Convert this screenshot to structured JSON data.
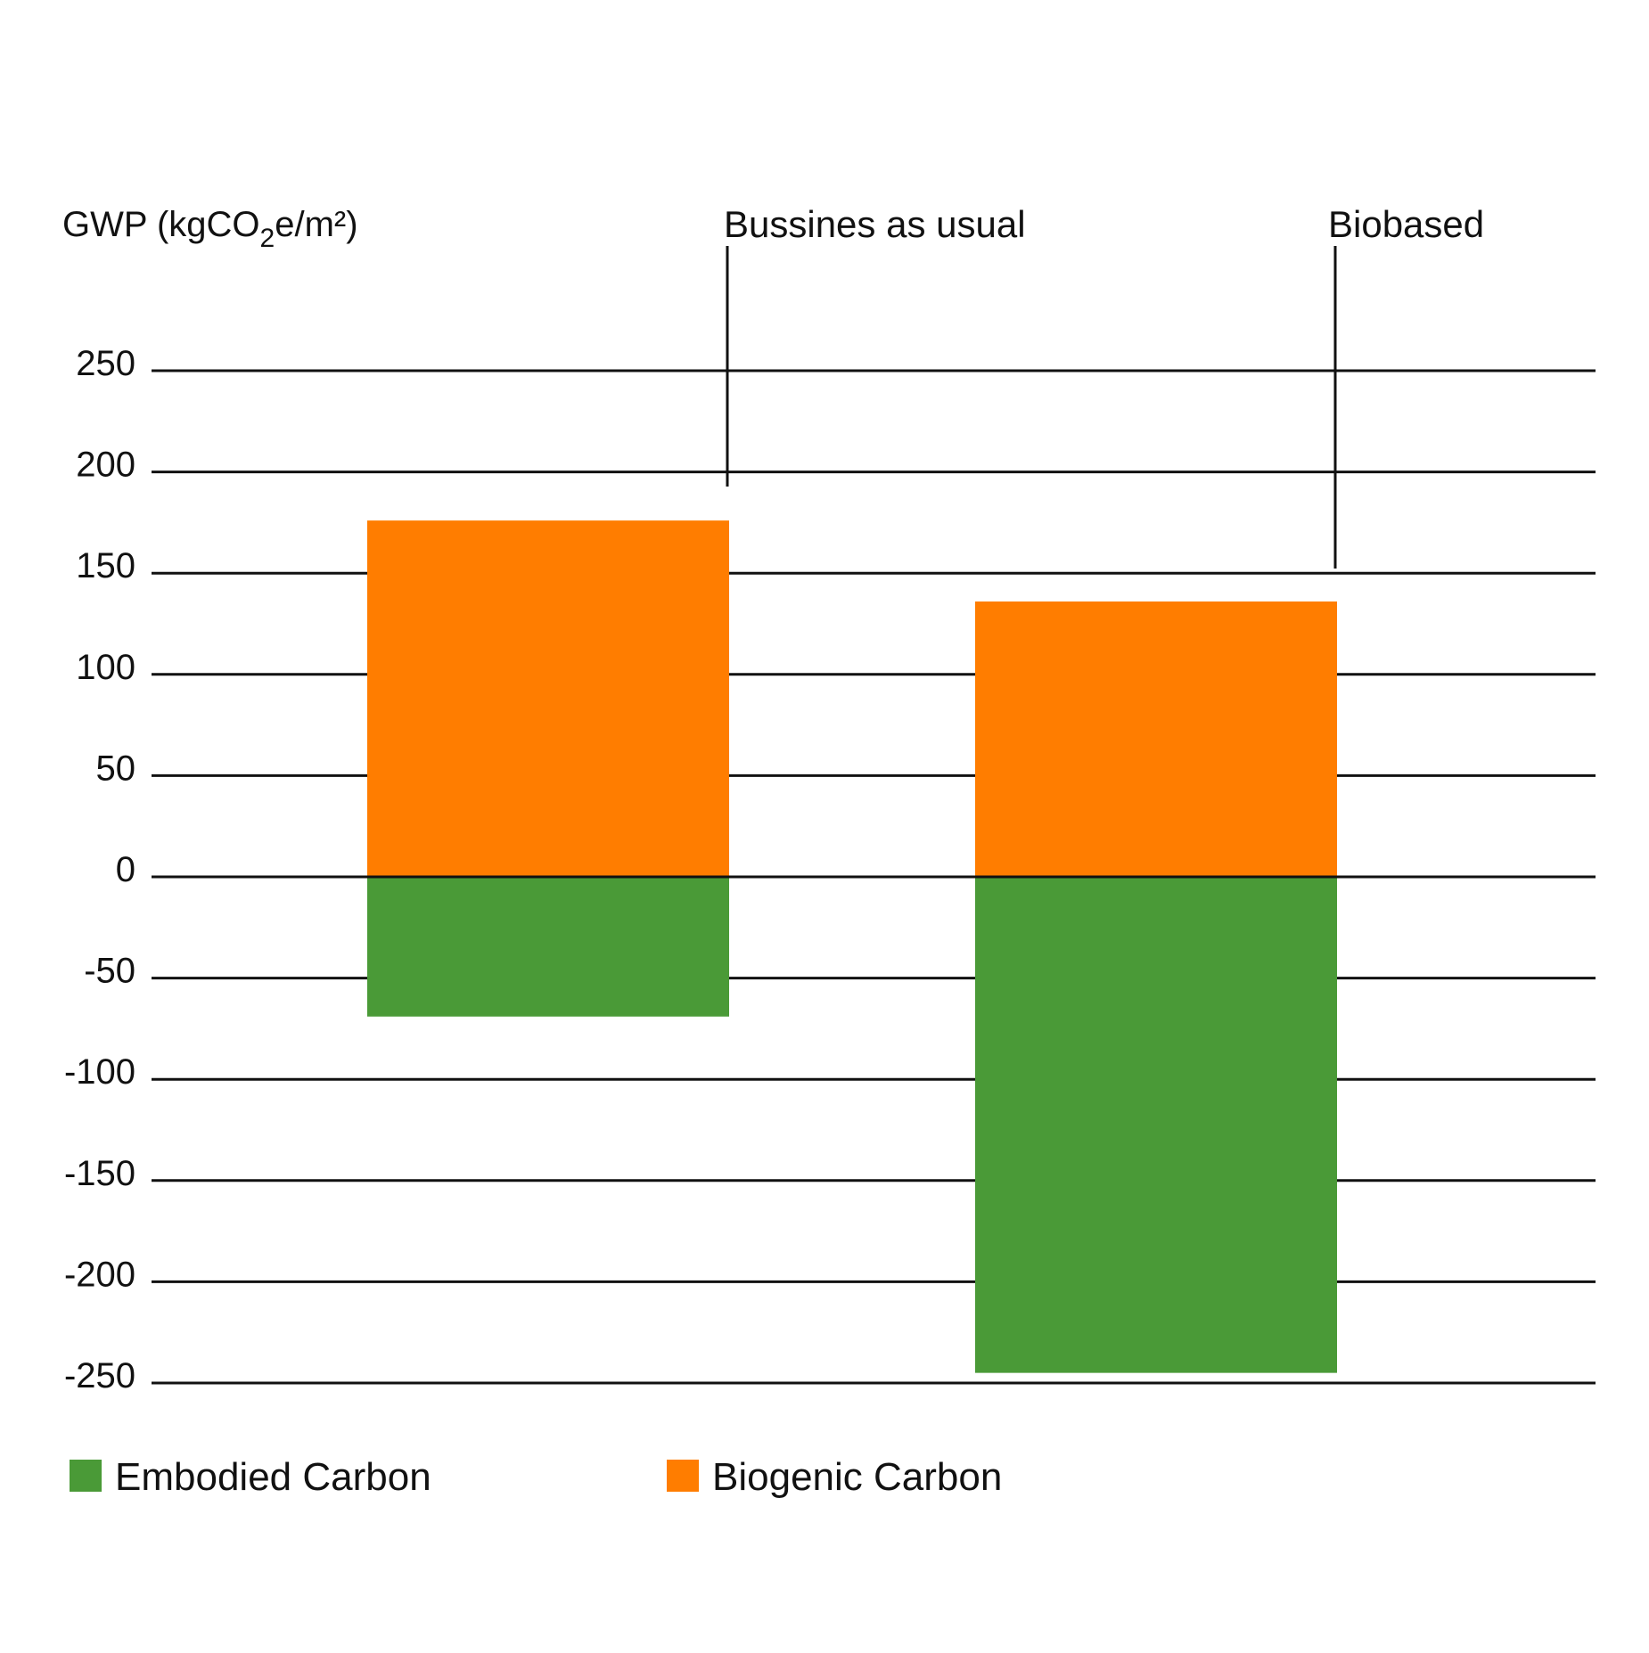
{
  "chart_data": {
    "type": "bar",
    "stacked": true,
    "ylabel": {
      "prefix": "GWP  (kgCO",
      "subscript": "2",
      "suffix": "e/m²)"
    },
    "categories": [
      "Bussines as usual",
      "Biobased"
    ],
    "series": [
      {
        "name": "Embodied Carbon",
        "color": "#4a9a37",
        "values": [
          -69,
          -245
        ]
      },
      {
        "name": "Biogenic Carbon",
        "color": "#ff7d00",
        "values": [
          176,
          136
        ]
      }
    ],
    "yticks": [
      250,
      200,
      150,
      100,
      50,
      0,
      -50,
      -100,
      -150,
      -200,
      -250
    ],
    "ylim": [
      -250,
      250
    ],
    "grid": true,
    "legend_position": "bottom-left"
  }
}
